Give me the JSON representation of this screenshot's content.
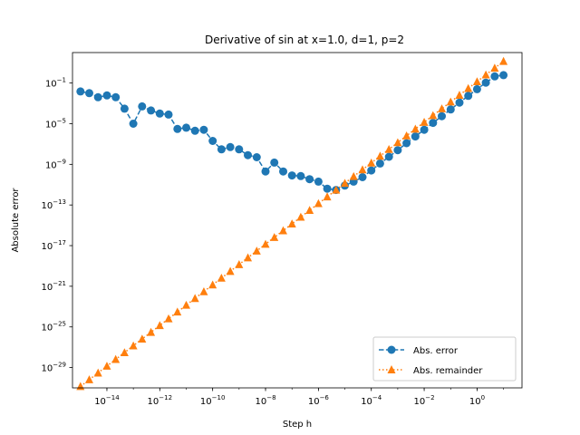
{
  "chart_data": {
    "type": "line",
    "title": "Derivative of sin at x=1.0, d=1, p=2",
    "xlabel": "Step h",
    "ylabel": "Absolute error",
    "x_scale": "log",
    "y_scale": "log",
    "xlim": [
      5e-16,
      50
    ],
    "ylim": [
      1e-31,
      100.0
    ],
    "x_ticks": [
      {
        "base": "10",
        "exp": "−14",
        "value": 1e-14
      },
      {
        "base": "10",
        "exp": "−12",
        "value": 1e-12
      },
      {
        "base": "10",
        "exp": "−10",
        "value": 1e-10
      },
      {
        "base": "10",
        "exp": "−8",
        "value": 1e-08
      },
      {
        "base": "10",
        "exp": "−6",
        "value": 1e-06
      },
      {
        "base": "10",
        "exp": "−4",
        "value": 0.0001
      },
      {
        "base": "10",
        "exp": "−2",
        "value": 0.01
      },
      {
        "base": "10",
        "exp": "0",
        "value": 1
      }
    ],
    "y_ticks": [
      {
        "base": "10",
        "exp": "−1",
        "value": 0.1
      },
      {
        "base": "10",
        "exp": "−5",
        "value": 1e-05
      },
      {
        "base": "10",
        "exp": "−9",
        "value": 1e-09
      },
      {
        "base": "10",
        "exp": "−13",
        "value": 1e-13
      },
      {
        "base": "10",
        "exp": "−17",
        "value": 1e-17
      },
      {
        "base": "10",
        "exp": "−21",
        "value": 1e-21
      },
      {
        "base": "10",
        "exp": "−25",
        "value": 1e-25
      },
      {
        "base": "10",
        "exp": "−29",
        "value": 1e-29
      }
    ],
    "grid": false,
    "legend_position": "bottom-right",
    "x": [
      1e-15,
      2.15e-15,
      4.64e-15,
      1e-14,
      2.15e-14,
      4.64e-14,
      1e-13,
      2.15e-13,
      4.64e-13,
      1e-12,
      2.15e-12,
      4.64e-12,
      1e-11,
      2.15e-11,
      4.64e-11,
      1e-10,
      2.15e-10,
      4.64e-10,
      1e-09,
      2.15e-09,
      4.64e-09,
      1e-08,
      2.15e-08,
      4.64e-08,
      1e-07,
      2.15e-07,
      4.64e-07,
      1e-06,
      2.15e-06,
      4.64e-06,
      1e-05,
      2.15e-05,
      4.64e-05,
      0.0001,
      0.000215,
      0.000464,
      0.001,
      0.00215,
      0.00464,
      0.01,
      0.0215,
      0.0464,
      0.1,
      0.215,
      0.464,
      1,
      2.15,
      4.64,
      10
    ],
    "series": [
      {
        "name": "Abs. error",
        "color": "#1f77b4",
        "marker": "circle",
        "linestyle": "dashed",
        "values": [
          0.015,
          0.01,
          0.004,
          0.006,
          0.004,
          0.0003,
          1e-05,
          0.0005,
          0.0002,
          0.0001,
          8e-05,
          3e-06,
          4e-06,
          2e-06,
          2.5e-06,
          2e-07,
          3e-08,
          5e-08,
          3e-08,
          8e-09,
          5e-09,
          2e-10,
          1.5e-09,
          2e-10,
          8e-11,
          7e-11,
          3.5e-11,
          2e-11,
          4e-12,
          3e-12,
          8e-12,
          2e-11,
          5.5e-11,
          2.5e-10,
          1.2e-09,
          5.5e-09,
          2.5e-08,
          1.2e-07,
          5.5e-07,
          2.5e-06,
          1.2e-05,
          5.5e-05,
          0.00025,
          0.0012,
          0.0055,
          0.025,
          0.11,
          0.45,
          0.6
        ]
      },
      {
        "name": "Abs. remainder",
        "color": "#ff7f0e",
        "marker": "triangle",
        "linestyle": "dotted",
        "values": [
          1.4e-31,
          6.5e-31,
          3e-30,
          1.4e-29,
          6.5e-29,
          3e-28,
          1.4e-27,
          6.5e-27,
          3e-26,
          1.4e-25,
          6.5e-25,
          3e-24,
          1.4e-23,
          6.5e-23,
          3e-22,
          1.4e-21,
          6.5e-21,
          3e-20,
          1.4e-19,
          6.5e-19,
          3e-18,
          1.4e-17,
          6.5e-17,
          3e-16,
          1.4e-15,
          6.5e-15,
          3e-14,
          1.4e-13,
          6.5e-13,
          3e-12,
          1.4e-11,
          6.5e-11,
          3e-10,
          1.4e-09,
          6.5e-09,
          3e-08,
          1.4e-07,
          6.5e-07,
          3e-06,
          1.4e-05,
          6.5e-05,
          0.0003,
          0.0014,
          0.0065,
          0.03,
          0.14,
          0.65,
          3,
          14
        ]
      }
    ]
  }
}
